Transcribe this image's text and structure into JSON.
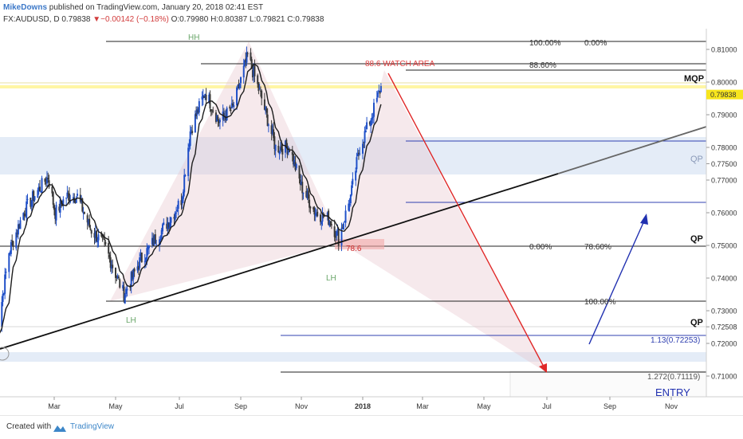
{
  "header": {
    "author": "MikeDowns",
    "published": "published on TradingView.com, January 20, 2018 02:41 EST",
    "symbol": "FX:AUDUSD, D",
    "last": "0.79838",
    "change": "▼−0.00142 (−0.18%)",
    "ohlc": "O:0.79980 H:0.80387 L:0.79821 C:0.79838"
  },
  "footer": {
    "created_with": "Created with",
    "brand": "TradingView"
  },
  "chart_data": {
    "type": "line",
    "title": "",
    "series": [
      {
        "values": [
          {
            "x": "2017-01-03",
            "y": 0.72
          },
          {
            "x": "2017-01-16",
            "y": 0.748
          },
          {
            "x": "2017-01-30",
            "y": 0.76
          },
          {
            "x": "2017-02-09",
            "y": 0.765
          },
          {
            "x": "2017-02-23",
            "y": 0.771
          },
          {
            "x": "2017-03-02",
            "y": 0.76
          },
          {
            "x": "2017-03-13",
            "y": 0.765
          },
          {
            "x": "2017-03-24",
            "y": 0.765
          },
          {
            "x": "2017-04-06",
            "y": 0.755
          },
          {
            "x": "2017-04-20",
            "y": 0.75
          },
          {
            "x": "2017-05-09",
            "y": 0.735
          },
          {
            "x": "2017-05-24",
            "y": 0.745
          },
          {
            "x": "2017-06-08",
            "y": 0.752
          },
          {
            "x": "2017-06-22",
            "y": 0.758
          },
          {
            "x": "2017-07-03",
            "y": 0.764
          },
          {
            "x": "2017-07-12",
            "y": 0.785
          },
          {
            "x": "2017-07-27",
            "y": 0.797
          },
          {
            "x": "2017-08-10",
            "y": 0.788
          },
          {
            "x": "2017-08-24",
            "y": 0.792
          },
          {
            "x": "2017-09-08",
            "y": 0.808
          },
          {
            "x": "2017-09-22",
            "y": 0.795
          },
          {
            "x": "2017-10-06",
            "y": 0.78
          },
          {
            "x": "2017-10-20",
            "y": 0.78
          },
          {
            "x": "2017-11-01",
            "y": 0.768
          },
          {
            "x": "2017-11-15",
            "y": 0.76
          },
          {
            "x": "2017-11-29",
            "y": 0.758
          },
          {
            "x": "2017-12-08",
            "y": 0.752
          },
          {
            "x": "2017-12-20",
            "y": 0.765
          },
          {
            "x": "2017-12-29",
            "y": 0.78
          },
          {
            "x": "2018-01-08",
            "y": 0.788
          },
          {
            "x": "2018-01-19",
            "y": 0.7984
          }
        ]
      }
    ],
    "x_ticks": [
      "Mar",
      "May",
      "Jul",
      "Sep",
      "Nov",
      "2018",
      "Mar",
      "May",
      "Jul",
      "Sep",
      "Nov"
    ],
    "y_ticks": [
      "0.81000",
      "0.80000",
      "0.79000",
      "0.78000",
      "0.77500",
      "0.77000",
      "0.76000",
      "0.75000",
      "0.74000",
      "0.73000",
      "0.72508",
      "0.72000",
      "0.71000"
    ],
    "ylim": [
      0.705,
      0.815
    ],
    "price_badge": "0.79838",
    "pattern_labels": {
      "hh": "HH",
      "lh_left": "LH",
      "lh_mid": "LH",
      "watch": "88.6 WATCH AREA",
      "retrace": "78.6"
    },
    "fib_labels": {
      "f100": "100.00%",
      "f0": "0.00%",
      "f886": "88.60%",
      "f0b": "0.00%",
      "f786": "78.60%",
      "f100b": "100.00%",
      "f113": "1.13(0.72253)",
      "f1272": "1.272(0.71119)"
    },
    "zone_labels": {
      "mqp": "MQP",
      "qp1": "QP",
      "qp2": "QP",
      "qp3": "QP",
      "entry": "ENTRY"
    },
    "colors": {
      "bull": "#2050c8",
      "bear": "#3a3a3a",
      "ma": "#1c1c1c",
      "pattern_fill": "#e8c4cc",
      "zone_blue": "#dbe6f4",
      "highlight_yellow": "#fff59a",
      "trendline": "#111111",
      "arrow_red": "#e02828",
      "arrow_blue": "#2030b0",
      "fib_line": "#222222",
      "blue_level": "#3040b0"
    }
  }
}
